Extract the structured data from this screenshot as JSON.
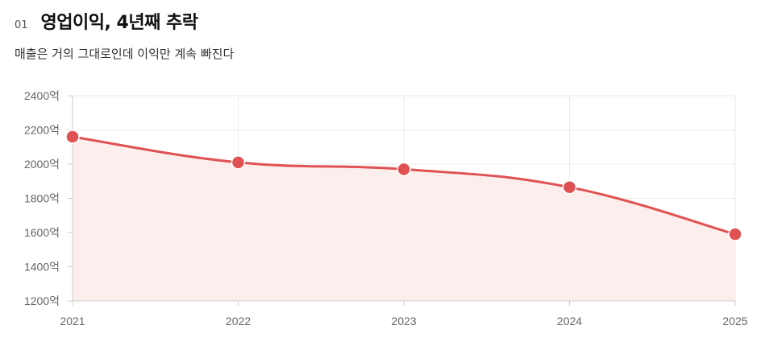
{
  "header": {
    "index": "01",
    "title": "영업이익, 4년째 추락",
    "subtitle": "매출은 거의 그대로인데 이익만 계속 빠진다"
  },
  "colors": {
    "line": "#e05252",
    "fill": "#fdeeee",
    "grid": "#ebebeb",
    "axis": "#cccccc"
  },
  "chart_data": {
    "type": "line",
    "title": "",
    "xlabel": "",
    "ylabel": "",
    "categories": [
      "2021",
      "2022",
      "2023",
      "2024",
      "2025"
    ],
    "series": [
      {
        "values": [
          2160,
          2010,
          1970,
          1865,
          1590
        ]
      }
    ],
    "ylim": [
      1200,
      2400
    ],
    "yticks": [
      1200,
      1400,
      1600,
      1800,
      2000,
      2200,
      2400
    ],
    "ytick_suffix": "억",
    "grid": true,
    "area_fill": true,
    "legend": "none"
  }
}
